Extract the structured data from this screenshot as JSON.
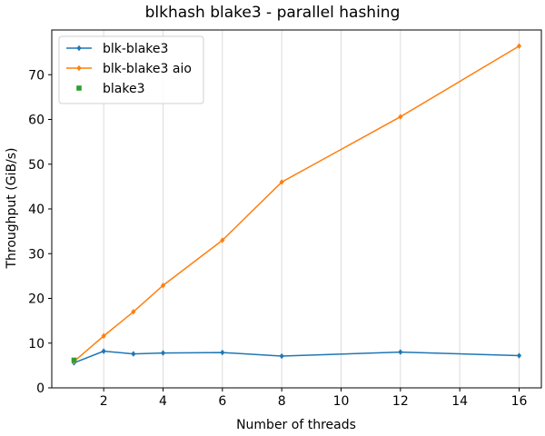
{
  "chart_data": {
    "type": "line",
    "title": "blkhash blake3 - parallel hashing",
    "xlabel": "Number of threads",
    "ylabel": "Throughput (GiB/s)",
    "xlim": [
      0.25,
      16.75
    ],
    "ylim": [
      0,
      80
    ],
    "xticks": [
      2,
      4,
      6,
      8,
      10,
      12,
      14,
      16
    ],
    "yticks": [
      0,
      10,
      20,
      30,
      40,
      50,
      60,
      70
    ],
    "grid": "vertical",
    "legend_position": "top-left",
    "series": [
      {
        "name": "blk-blake3",
        "color": "#1f77b4",
        "marker": "diamond",
        "line": true,
        "x": [
          1,
          2,
          3,
          4,
          6,
          8,
          12,
          16
        ],
        "y": [
          5.6,
          8.2,
          7.6,
          7.8,
          7.9,
          7.1,
          8.0,
          7.2
        ]
      },
      {
        "name": "blk-blake3 aio",
        "color": "#ff7f0e",
        "marker": "diamond",
        "line": true,
        "x": [
          1,
          2,
          3,
          4,
          6,
          8,
          12,
          16
        ],
        "y": [
          5.9,
          11.6,
          17.0,
          22.9,
          33.0,
          46.0,
          60.6,
          76.4
        ]
      },
      {
        "name": "blake3",
        "color": "#2ca02c",
        "marker": "square",
        "line": false,
        "x": [
          1
        ],
        "y": [
          6.2
        ]
      }
    ]
  }
}
